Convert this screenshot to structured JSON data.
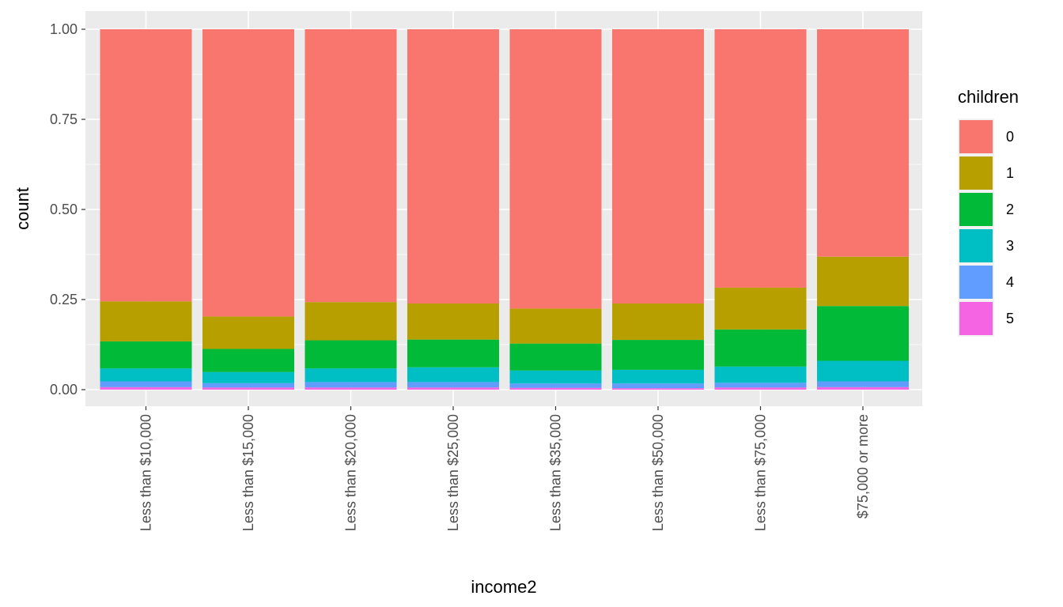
{
  "chart_data": {
    "type": "bar",
    "stacked": true,
    "position": "fill",
    "xlabel": "income2",
    "ylabel": "count",
    "ylim": [
      0,
      1
    ],
    "yticks": [
      "0.00",
      "0.25",
      "0.50",
      "0.75",
      "1.00"
    ],
    "ytick_values": [
      0,
      0.25,
      0.5,
      0.75,
      1
    ],
    "grid": true,
    "legend_position": "right",
    "legend_title": "children",
    "categories": [
      "Less than $10,000",
      "Less than $15,000",
      "Less than $20,000",
      "Less than $25,000",
      "Less than $35,000",
      "Less than $50,000",
      "Less than $75,000",
      "$75,000 or more"
    ],
    "series": [
      {
        "name": "0",
        "color": "#F8766D",
        "values": [
          0.755,
          0.797,
          0.757,
          0.761,
          0.775,
          0.761,
          0.717,
          0.631
        ]
      },
      {
        "name": "1",
        "color": "#B79F00",
        "values": [
          0.111,
          0.09,
          0.106,
          0.1,
          0.097,
          0.101,
          0.116,
          0.137
        ]
      },
      {
        "name": "2",
        "color": "#00BA38",
        "values": [
          0.075,
          0.064,
          0.078,
          0.077,
          0.075,
          0.083,
          0.103,
          0.152
        ]
      },
      {
        "name": "3",
        "color": "#00BFC4",
        "values": [
          0.036,
          0.031,
          0.038,
          0.041,
          0.036,
          0.038,
          0.045,
          0.057
        ]
      },
      {
        "name": "4",
        "color": "#619CFF",
        "values": [
          0.016,
          0.012,
          0.015,
          0.015,
          0.012,
          0.013,
          0.013,
          0.016
        ]
      },
      {
        "name": "5",
        "color": "#F564E3",
        "values": [
          0.007,
          0.006,
          0.006,
          0.006,
          0.005,
          0.004,
          0.006,
          0.007
        ]
      }
    ]
  }
}
